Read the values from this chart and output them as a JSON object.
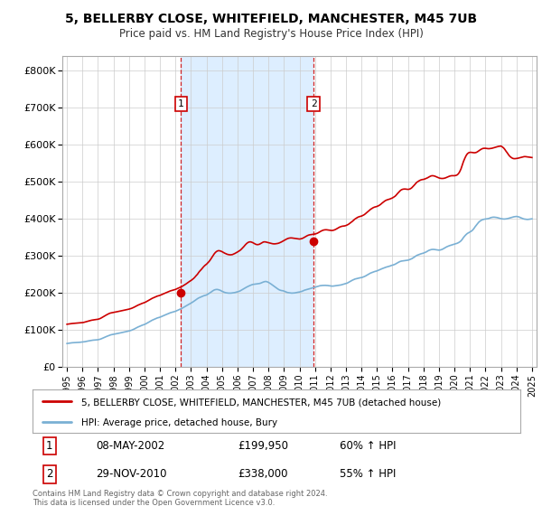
{
  "title": "5, BELLERBY CLOSE, WHITEFIELD, MANCHESTER, M45 7UB",
  "subtitle": "Price paid vs. HM Land Registry's House Price Index (HPI)",
  "legend_line1": "5, BELLERBY CLOSE, WHITEFIELD, MANCHESTER, M45 7UB (detached house)",
  "legend_line2": "HPI: Average price, detached house, Bury",
  "sale1_label": "1",
  "sale1_date": "08-MAY-2002",
  "sale1_price": "£199,950",
  "sale1_hpi": "60% ↑ HPI",
  "sale1_x": 2002.35,
  "sale1_y": 199950,
  "sale2_label": "2",
  "sale2_date": "29-NOV-2010",
  "sale2_price": "£338,000",
  "sale2_hpi": "55% ↑ HPI",
  "sale2_x": 2010.91,
  "sale2_y": 338000,
  "red_color": "#cc0000",
  "blue_color": "#7ab0d4",
  "shade_color": "#ddeeff",
  "plot_bg": "#ffffff",
  "grid_color": "#cccccc",
  "ylim": [
    0,
    840000
  ],
  "xlim": [
    1994.7,
    2025.3
  ],
  "footer": "Contains HM Land Registry data © Crown copyright and database right 2024.\nThis data is licensed under the Open Government Licence v3.0.",
  "hpi_x": [
    1995.0,
    1995.08,
    1995.17,
    1995.25,
    1995.33,
    1995.42,
    1995.5,
    1995.58,
    1995.67,
    1995.75,
    1995.83,
    1995.92,
    1996.0,
    1996.08,
    1996.17,
    1996.25,
    1996.33,
    1996.42,
    1996.5,
    1996.58,
    1996.67,
    1996.75,
    1996.83,
    1996.92,
    1997.0,
    1997.08,
    1997.17,
    1997.25,
    1997.33,
    1997.42,
    1997.5,
    1997.58,
    1997.67,
    1997.75,
    1997.83,
    1997.92,
    1998.0,
    1998.08,
    1998.17,
    1998.25,
    1998.33,
    1998.42,
    1998.5,
    1998.58,
    1998.67,
    1998.75,
    1998.83,
    1998.92,
    1999.0,
    1999.08,
    1999.17,
    1999.25,
    1999.33,
    1999.42,
    1999.5,
    1999.58,
    1999.67,
    1999.75,
    1999.83,
    1999.92,
    2000.0,
    2000.08,
    2000.17,
    2000.25,
    2000.33,
    2000.42,
    2000.5,
    2000.58,
    2000.67,
    2000.75,
    2000.83,
    2000.92,
    2001.0,
    2001.08,
    2001.17,
    2001.25,
    2001.33,
    2001.42,
    2001.5,
    2001.58,
    2001.67,
    2001.75,
    2001.83,
    2001.92,
    2002.0,
    2002.08,
    2002.17,
    2002.25,
    2002.33,
    2002.42,
    2002.5,
    2002.58,
    2002.67,
    2002.75,
    2002.83,
    2002.92,
    2003.0,
    2003.08,
    2003.17,
    2003.25,
    2003.33,
    2003.42,
    2003.5,
    2003.58,
    2003.67,
    2003.75,
    2003.83,
    2003.92,
    2004.0,
    2004.08,
    2004.17,
    2004.25,
    2004.33,
    2004.42,
    2004.5,
    2004.58,
    2004.67,
    2004.75,
    2004.83,
    2004.92,
    2005.0,
    2005.08,
    2005.17,
    2005.25,
    2005.33,
    2005.42,
    2005.5,
    2005.58,
    2005.67,
    2005.75,
    2005.83,
    2005.92,
    2006.0,
    2006.08,
    2006.17,
    2006.25,
    2006.33,
    2006.42,
    2006.5,
    2006.58,
    2006.67,
    2006.75,
    2006.83,
    2006.92,
    2007.0,
    2007.08,
    2007.17,
    2007.25,
    2007.33,
    2007.42,
    2007.5,
    2007.58,
    2007.67,
    2007.75,
    2007.83,
    2007.92,
    2008.0,
    2008.08,
    2008.17,
    2008.25,
    2008.33,
    2008.42,
    2008.5,
    2008.58,
    2008.67,
    2008.75,
    2008.83,
    2008.92,
    2009.0,
    2009.08,
    2009.17,
    2009.25,
    2009.33,
    2009.42,
    2009.5,
    2009.58,
    2009.67,
    2009.75,
    2009.83,
    2009.92,
    2010.0,
    2010.08,
    2010.17,
    2010.25,
    2010.33,
    2010.42,
    2010.5,
    2010.58,
    2010.67,
    2010.75,
    2010.83,
    2010.92,
    2011.0,
    2011.08,
    2011.17,
    2011.25,
    2011.33,
    2011.42,
    2011.5,
    2011.58,
    2011.67,
    2011.75,
    2011.83,
    2011.92,
    2012.0,
    2012.08,
    2012.17,
    2012.25,
    2012.33,
    2012.42,
    2012.5,
    2012.58,
    2012.67,
    2012.75,
    2012.83,
    2012.92,
    2013.0,
    2013.08,
    2013.17,
    2013.25,
    2013.33,
    2013.42,
    2013.5,
    2013.58,
    2013.67,
    2013.75,
    2013.83,
    2013.92,
    2014.0,
    2014.08,
    2014.17,
    2014.25,
    2014.33,
    2014.42,
    2014.5,
    2014.58,
    2014.67,
    2014.75,
    2014.83,
    2014.92,
    2015.0,
    2015.08,
    2015.17,
    2015.25,
    2015.33,
    2015.42,
    2015.5,
    2015.58,
    2015.67,
    2015.75,
    2015.83,
    2015.92,
    2016.0,
    2016.08,
    2016.17,
    2016.25,
    2016.33,
    2016.42,
    2016.5,
    2016.58,
    2016.67,
    2016.75,
    2016.83,
    2016.92,
    2017.0,
    2017.08,
    2017.17,
    2017.25,
    2017.33,
    2017.42,
    2017.5,
    2017.58,
    2017.67,
    2017.75,
    2017.83,
    2017.92,
    2018.0,
    2018.08,
    2018.17,
    2018.25,
    2018.33,
    2018.42,
    2018.5,
    2018.58,
    2018.67,
    2018.75,
    2018.83,
    2018.92,
    2019.0,
    2019.08,
    2019.17,
    2019.25,
    2019.33,
    2019.42,
    2019.5,
    2019.58,
    2019.67,
    2019.75,
    2019.83,
    2019.92,
    2020.0,
    2020.08,
    2020.17,
    2020.25,
    2020.33,
    2020.42,
    2020.5,
    2020.58,
    2020.67,
    2020.75,
    2020.83,
    2020.92,
    2021.0,
    2021.08,
    2021.17,
    2021.25,
    2021.33,
    2021.42,
    2021.5,
    2021.58,
    2021.67,
    2021.75,
    2021.83,
    2021.92,
    2022.0,
    2022.08,
    2022.17,
    2022.25,
    2022.33,
    2022.42,
    2022.5,
    2022.58,
    2022.67,
    2022.75,
    2022.83,
    2022.92,
    2023.0,
    2023.08,
    2023.17,
    2023.25,
    2023.33,
    2023.42,
    2023.5,
    2023.58,
    2023.67,
    2023.75,
    2023.83,
    2023.92,
    2024.0,
    2024.08,
    2024.17,
    2024.25,
    2024.33,
    2024.42,
    2024.5,
    2024.58,
    2024.67,
    2024.75,
    2024.83,
    2024.92,
    2025.0
  ],
  "hpi_y": [
    63000,
    63500,
    64000,
    64500,
    65000,
    65200,
    65400,
    65600,
    65800,
    66000,
    66300,
    66700,
    67000,
    67500,
    68000,
    68800,
    69500,
    70200,
    71000,
    71500,
    72000,
    72300,
    72500,
    72800,
    73200,
    74000,
    75000,
    76500,
    78000,
    79500,
    81000,
    82500,
    84000,
    85500,
    86500,
    87200,
    87800,
    88500,
    89200,
    90000,
    90800,
    91500,
    92200,
    93000,
    93800,
    94500,
    95200,
    96000,
    96800,
    97800,
    99000,
    100500,
    102000,
    104000,
    106000,
    107500,
    109000,
    110500,
    112000,
    113200,
    114500,
    116000,
    118000,
    120000,
    122000,
    124000,
    126000,
    127500,
    129000,
    130500,
    132000,
    133000,
    134000,
    135500,
    137000,
    138500,
    140000,
    141500,
    143000,
    144500,
    146000,
    147000,
    148000,
    149000,
    150000,
    151500,
    153000,
    154500,
    156000,
    158000,
    160000,
    162000,
    164000,
    166000,
    168000,
    170000,
    172000,
    174000,
    176500,
    179000,
    181500,
    184000,
    186000,
    187500,
    189000,
    190500,
    192000,
    193000,
    194000,
    196000,
    198000,
    200500,
    203000,
    205500,
    207500,
    208500,
    209000,
    208500,
    207500,
    206000,
    204000,
    202500,
    201000,
    200000,
    199500,
    199000,
    199000,
    199000,
    199500,
    200000,
    200500,
    201500,
    202500,
    203500,
    205000,
    207000,
    209000,
    211000,
    213000,
    215000,
    217000,
    218500,
    220000,
    221500,
    222500,
    223000,
    223500,
    224000,
    224500,
    225000,
    226000,
    227500,
    229000,
    230000,
    230500,
    229500,
    228000,
    226000,
    223500,
    221000,
    218500,
    216000,
    213500,
    211000,
    208500,
    207000,
    206000,
    205500,
    204500,
    203000,
    201500,
    200500,
    200000,
    199500,
    199000,
    199200,
    199500,
    200000,
    200800,
    201500,
    202000,
    203000,
    204000,
    205500,
    207000,
    208000,
    209000,
    210000,
    211000,
    212000,
    213000,
    214000,
    215000,
    216000,
    217000,
    218000,
    219000,
    219500,
    219800,
    220000,
    220000,
    219800,
    219500,
    219000,
    218500,
    218000,
    218000,
    218500,
    219000,
    219500,
    220000,
    220500,
    221000,
    222000,
    223000,
    224000,
    225000,
    226000,
    228000,
    230000,
    232000,
    234000,
    235500,
    237000,
    238000,
    239000,
    240000,
    240500,
    241000,
    242000,
    243500,
    245000,
    247000,
    249000,
    251000,
    253000,
    254500,
    256000,
    257000,
    258000,
    259000,
    260500,
    262000,
    263500,
    265000,
    266500,
    268000,
    269000,
    270000,
    271000,
    272000,
    273500,
    274500,
    275500,
    277000,
    279000,
    281000,
    283000,
    284500,
    285500,
    286000,
    286500,
    287000,
    287500,
    288000,
    289000,
    290500,
    292000,
    294000,
    296500,
    299000,
    301000,
    302500,
    304000,
    305000,
    306000,
    307000,
    308500,
    310000,
    312000,
    314000,
    315500,
    316500,
    317000,
    317000,
    316500,
    316000,
    315500,
    315000,
    315500,
    316500,
    318000,
    320000,
    322000,
    324000,
    325500,
    327000,
    328000,
    329000,
    330000,
    331000,
    332000,
    333500,
    335000,
    337000,
    340000,
    344000,
    349000,
    353500,
    357000,
    360000,
    362000,
    364000,
    366000,
    369000,
    373000,
    378000,
    383000,
    387000,
    391000,
    394000,
    396000,
    397500,
    398500,
    399000,
    399500,
    400000,
    401000,
    402500,
    403500,
    404000,
    404000,
    403500,
    403000,
    402000,
    401000,
    400000,
    399500,
    399000,
    399000,
    399500,
    400000,
    401000,
    402000,
    403000,
    404000,
    405000,
    405500,
    406000,
    405500,
    404500,
    403000,
    401500,
    400000,
    399000,
    398500,
    398000,
    398000,
    398500,
    399000,
    399500
  ],
  "red_x": [
    1995.0,
    1995.08,
    1995.17,
    1995.25,
    1995.33,
    1995.42,
    1995.5,
    1995.58,
    1995.67,
    1995.75,
    1995.83,
    1995.92,
    1996.0,
    1996.08,
    1996.17,
    1996.25,
    1996.33,
    1996.42,
    1996.5,
    1996.58,
    1996.67,
    1996.75,
    1996.83,
    1996.92,
    1997.0,
    1997.08,
    1997.17,
    1997.25,
    1997.33,
    1997.42,
    1997.5,
    1997.58,
    1997.67,
    1997.75,
    1997.83,
    1997.92,
    1998.0,
    1998.08,
    1998.17,
    1998.25,
    1998.33,
    1998.42,
    1998.5,
    1998.58,
    1998.67,
    1998.75,
    1998.83,
    1998.92,
    1999.0,
    1999.08,
    1999.17,
    1999.25,
    1999.33,
    1999.42,
    1999.5,
    1999.58,
    1999.67,
    1999.75,
    1999.83,
    1999.92,
    2000.0,
    2000.08,
    2000.17,
    2000.25,
    2000.33,
    2000.42,
    2000.5,
    2000.58,
    2000.67,
    2000.75,
    2000.83,
    2000.92,
    2001.0,
    2001.08,
    2001.17,
    2001.25,
    2001.33,
    2001.42,
    2001.5,
    2001.58,
    2001.67,
    2001.75,
    2001.83,
    2001.92,
    2002.0,
    2002.08,
    2002.17,
    2002.25,
    2002.33,
    2002.42,
    2002.5,
    2002.58,
    2002.67,
    2002.75,
    2002.83,
    2002.92,
    2003.0,
    2003.08,
    2003.17,
    2003.25,
    2003.33,
    2003.42,
    2003.5,
    2003.58,
    2003.67,
    2003.75,
    2003.83,
    2003.92,
    2004.0,
    2004.08,
    2004.17,
    2004.25,
    2004.33,
    2004.42,
    2004.5,
    2004.58,
    2004.67,
    2004.75,
    2004.83,
    2004.92,
    2005.0,
    2005.08,
    2005.17,
    2005.25,
    2005.33,
    2005.42,
    2005.5,
    2005.58,
    2005.67,
    2005.75,
    2005.83,
    2005.92,
    2006.0,
    2006.08,
    2006.17,
    2006.25,
    2006.33,
    2006.42,
    2006.5,
    2006.58,
    2006.67,
    2006.75,
    2006.83,
    2006.92,
    2007.0,
    2007.08,
    2007.17,
    2007.25,
    2007.33,
    2007.42,
    2007.5,
    2007.58,
    2007.67,
    2007.75,
    2007.83,
    2007.92,
    2008.0,
    2008.08,
    2008.17,
    2008.25,
    2008.33,
    2008.42,
    2008.5,
    2008.58,
    2008.67,
    2008.75,
    2008.83,
    2008.92,
    2009.0,
    2009.08,
    2009.17,
    2009.25,
    2009.33,
    2009.42,
    2009.5,
    2009.58,
    2009.67,
    2009.75,
    2009.83,
    2009.92,
    2010.0,
    2010.08,
    2010.17,
    2010.25,
    2010.33,
    2010.42,
    2010.5,
    2010.58,
    2010.67,
    2010.75,
    2010.83,
    2010.92,
    2011.0,
    2011.08,
    2011.17,
    2011.25,
    2011.33,
    2011.42,
    2011.5,
    2011.58,
    2011.67,
    2011.75,
    2011.83,
    2011.92,
    2012.0,
    2012.08,
    2012.17,
    2012.25,
    2012.33,
    2012.42,
    2012.5,
    2012.58,
    2012.67,
    2012.75,
    2012.83,
    2012.92,
    2013.0,
    2013.08,
    2013.17,
    2013.25,
    2013.33,
    2013.42,
    2013.5,
    2013.58,
    2013.67,
    2013.75,
    2013.83,
    2013.92,
    2014.0,
    2014.08,
    2014.17,
    2014.25,
    2014.33,
    2014.42,
    2014.5,
    2014.58,
    2014.67,
    2014.75,
    2014.83,
    2014.92,
    2015.0,
    2015.08,
    2015.17,
    2015.25,
    2015.33,
    2015.42,
    2015.5,
    2015.58,
    2015.67,
    2015.75,
    2015.83,
    2015.92,
    2016.0,
    2016.08,
    2016.17,
    2016.25,
    2016.33,
    2016.42,
    2016.5,
    2016.58,
    2016.67,
    2016.75,
    2016.83,
    2016.92,
    2017.0,
    2017.08,
    2017.17,
    2017.25,
    2017.33,
    2017.42,
    2017.5,
    2017.58,
    2017.67,
    2017.75,
    2017.83,
    2017.92,
    2018.0,
    2018.08,
    2018.17,
    2018.25,
    2018.33,
    2018.42,
    2018.5,
    2018.58,
    2018.67,
    2018.75,
    2018.83,
    2018.92,
    2019.0,
    2019.08,
    2019.17,
    2019.25,
    2019.33,
    2019.42,
    2019.5,
    2019.58,
    2019.67,
    2019.75,
    2019.83,
    2019.92,
    2020.0,
    2020.08,
    2020.17,
    2020.25,
    2020.33,
    2020.42,
    2020.5,
    2020.58,
    2020.67,
    2020.75,
    2020.83,
    2020.92,
    2021.0,
    2021.08,
    2021.17,
    2021.25,
    2021.33,
    2021.42,
    2021.5,
    2021.58,
    2021.67,
    2021.75,
    2021.83,
    2021.92,
    2022.0,
    2022.08,
    2022.17,
    2022.25,
    2022.33,
    2022.42,
    2022.5,
    2022.58,
    2022.67,
    2022.75,
    2022.83,
    2022.92,
    2023.0,
    2023.08,
    2023.17,
    2023.25,
    2023.33,
    2023.42,
    2023.5,
    2023.58,
    2023.67,
    2023.75,
    2023.83,
    2023.92,
    2024.0,
    2024.08,
    2024.17,
    2024.25,
    2024.33,
    2024.42,
    2024.5,
    2024.58,
    2024.67,
    2024.75,
    2024.83,
    2024.92,
    2025.0
  ],
  "red_y": [
    115000,
    115500,
    116000,
    116500,
    117000,
    117300,
    117600,
    117800,
    118000,
    118200,
    118500,
    119000,
    119500,
    120000,
    121000,
    122000,
    123000,
    124000,
    125000,
    125800,
    126500,
    127000,
    127500,
    128000,
    128500,
    129500,
    131000,
    133000,
    135000,
    137000,
    139000,
    141000,
    143000,
    144500,
    145500,
    146200,
    146800,
    147500,
    148200,
    149000,
    149800,
    150500,
    151200,
    152000,
    152800,
    153500,
    154200,
    155000,
    155800,
    156800,
    158000,
    159500,
    161000,
    163000,
    165000,
    166500,
    168000,
    169500,
    171000,
    172200,
    173500,
    175000,
    177000,
    179000,
    181000,
    183000,
    185000,
    186500,
    188000,
    189500,
    191000,
    192000,
    193000,
    194500,
    196000,
    197500,
    199000,
    200500,
    202000,
    203500,
    205000,
    206000,
    207000,
    208000,
    209000,
    210500,
    212000,
    213500,
    215000,
    217000,
    219000,
    221000,
    223500,
    226000,
    228500,
    231000,
    233000,
    235500,
    238500,
    242000,
    246000,
    250000,
    255000,
    259000,
    263000,
    267000,
    271000,
    274500,
    277000,
    280500,
    284500,
    289000,
    294000,
    299500,
    305000,
    309000,
    312000,
    313500,
    313500,
    312500,
    311000,
    309000,
    307000,
    305500,
    304000,
    303000,
    302500,
    302500,
    303000,
    304500,
    306000,
    308000,
    310000,
    312000,
    314500,
    317500,
    321000,
    325000,
    329000,
    332500,
    335500,
    337000,
    337500,
    336500,
    335000,
    333000,
    331000,
    330000,
    330000,
    331000,
    333000,
    335000,
    337000,
    337500,
    337000,
    336000,
    335000,
    334000,
    333000,
    332500,
    332000,
    332000,
    332500,
    333000,
    334000,
    335500,
    337000,
    339000,
    341000,
    343000,
    345000,
    346500,
    347500,
    348000,
    348000,
    347500,
    347000,
    346500,
    346000,
    345500,
    345000,
    345500,
    346500,
    348000,
    350000,
    352000,
    354000,
    355500,
    356500,
    357000,
    357500,
    358000,
    358500,
    359500,
    361000,
    363000,
    365000,
    367000,
    368500,
    369500,
    370000,
    370000,
    369500,
    369000,
    368500,
    368000,
    368500,
    369500,
    371000,
    373000,
    375000,
    377000,
    378500,
    379500,
    380000,
    380500,
    381500,
    383000,
    385000,
    387500,
    390000,
    393000,
    396000,
    399000,
    401500,
    403500,
    405000,
    406000,
    407000,
    408500,
    410500,
    413000,
    416000,
    419000,
    422000,
    425000,
    427500,
    429500,
    431000,
    432000,
    433000,
    434500,
    436500,
    439000,
    442000,
    445000,
    447500,
    449500,
    451000,
    452000,
    453000,
    454500,
    456000,
    458000,
    460500,
    464000,
    468000,
    472000,
    475500,
    478000,
    479500,
    480000,
    480000,
    479500,
    479000,
    479500,
    481000,
    483500,
    487000,
    491000,
    495000,
    498500,
    501000,
    503000,
    504500,
    505500,
    506000,
    507000,
    508500,
    510000,
    512000,
    514000,
    515500,
    516000,
    515500,
    514500,
    513000,
    511500,
    510000,
    509000,
    508500,
    508500,
    509000,
    510000,
    511500,
    513000,
    514500,
    515500,
    516000,
    516000,
    516000,
    516500,
    518000,
    521000,
    526000,
    534000,
    544000,
    554000,
    563000,
    570000,
    575000,
    578000,
    579000,
    579000,
    578500,
    578000,
    578000,
    579000,
    581000,
    583500,
    586000,
    588000,
    589500,
    590000,
    590000,
    589500,
    589000,
    589000,
    589500,
    590000,
    591000,
    592000,
    593000,
    594000,
    595000,
    595500,
    596000,
    594000,
    591000,
    587000,
    582000,
    577000,
    572000,
    568000,
    565000,
    563000,
    562000,
    562000,
    562500,
    563000,
    564000,
    565000,
    566000,
    567000,
    567500,
    567500,
    567000,
    566500,
    566000,
    565500,
    565000
  ]
}
